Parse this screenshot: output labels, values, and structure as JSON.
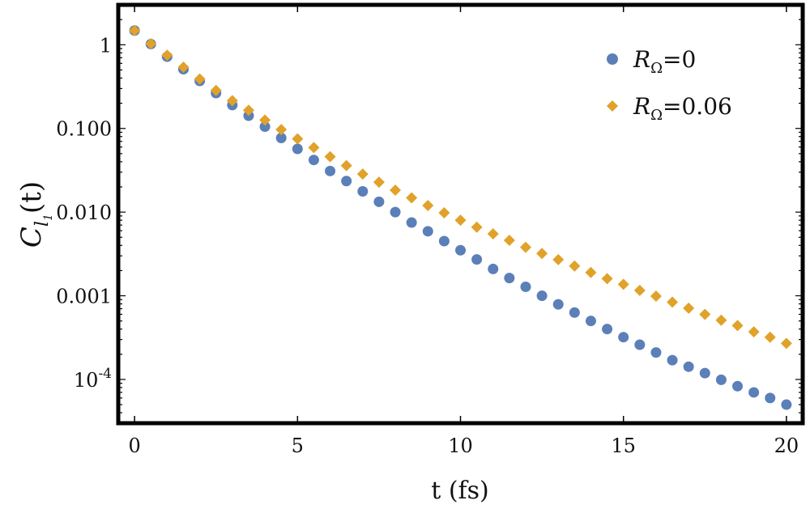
{
  "chart_data": {
    "type": "scatter",
    "title": "",
    "xlabel": "t (fs)",
    "ylabel": {
      "base": "C",
      "sub": "l",
      "subsub": "1",
      "arg": "(t)"
    },
    "xlim": [
      -0.5,
      20.5
    ],
    "ylim": [
      3e-05,
      3
    ],
    "yscale": "log",
    "x_ticks": [
      {
        "value": 0,
        "label": "0"
      },
      {
        "value": 5,
        "label": "5"
      },
      {
        "value": 10,
        "label": "10"
      },
      {
        "value": 15,
        "label": "15"
      },
      {
        "value": 20,
        "label": "20"
      }
    ],
    "y_ticks": [
      {
        "value": 1,
        "label": "1"
      },
      {
        "value": 0.1,
        "label": "0.100"
      },
      {
        "value": 0.01,
        "label": "0.010"
      },
      {
        "value": 0.001,
        "label": "0.001"
      },
      {
        "value": 0.0001,
        "label": "10",
        "exp": "-4"
      }
    ],
    "grid": false,
    "legend_position": "top-right",
    "x": [
      0,
      0.5,
      1,
      1.5,
      2,
      2.5,
      3,
      3.5,
      4,
      4.5,
      5,
      5.5,
      6,
      6.5,
      7,
      7.5,
      8,
      8.5,
      9,
      9.5,
      10,
      10.5,
      11,
      11.5,
      12,
      12.5,
      13,
      13.5,
      14,
      14.5,
      15,
      15.5,
      16,
      16.5,
      17,
      17.5,
      18,
      18.5,
      19,
      19.5,
      20
    ],
    "series": [
      {
        "name": "R_Ω=0",
        "legend_base": "R",
        "legend_sub": "Ω",
        "legend_value": "=0",
        "color": "#5b7fb8",
        "marker": "circle",
        "values": [
          1.48,
          1.02,
          0.72,
          0.51,
          0.37,
          0.265,
          0.19,
          0.142,
          0.105,
          0.077,
          0.057,
          0.042,
          0.031,
          0.0235,
          0.0177,
          0.0133,
          0.01,
          0.0075,
          0.0059,
          0.0045,
          0.0035,
          0.00272,
          0.00209,
          0.00163,
          0.00128,
          0.001,
          0.00079,
          0.00063,
          0.0005,
          0.0004,
          0.00032,
          0.00026,
          0.00021,
          0.00017,
          0.000142,
          0.000119,
          9.9e-05,
          8.3e-05,
          7e-05,
          6e-05,
          5e-05
        ]
      },
      {
        "name": "R_Ω=0.06",
        "legend_base": "R",
        "legend_sub": "Ω",
        "legend_value": "=0.06",
        "color": "#e0a22a",
        "marker": "diamond",
        "values": [
          1.48,
          1.03,
          0.75,
          0.54,
          0.39,
          0.285,
          0.215,
          0.165,
          0.126,
          0.097,
          0.075,
          0.059,
          0.046,
          0.036,
          0.0285,
          0.0228,
          0.0183,
          0.0148,
          0.012,
          0.0098,
          0.008,
          0.0066,
          0.0055,
          0.0046,
          0.0038,
          0.0032,
          0.0027,
          0.00227,
          0.0019,
          0.0016,
          0.00137,
          0.00116,
          0.00099,
          0.00084,
          0.00071,
          0.0006,
          0.00051,
          0.00044,
          0.00037,
          0.00032,
          0.00027
        ]
      }
    ]
  }
}
